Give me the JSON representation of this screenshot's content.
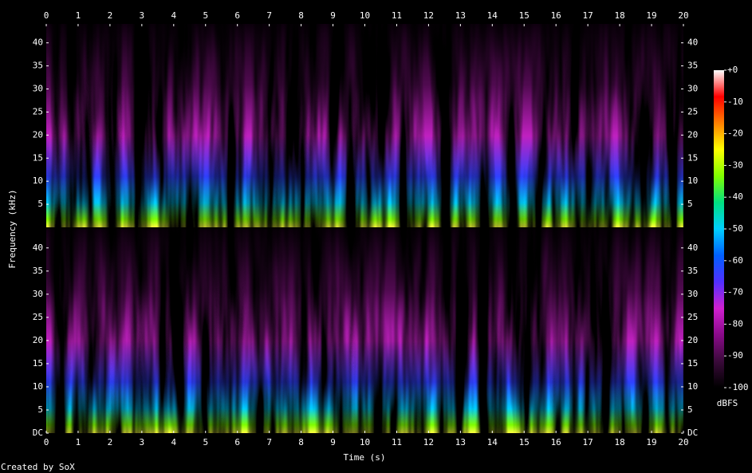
{
  "chart_data": {
    "type": "spectrogram",
    "xlabel": "Time (s)",
    "ylabel": "Frequency (kHz)",
    "footer": "Created by SoX",
    "xlim": [
      0,
      20
    ],
    "xticks": [
      0,
      1,
      2,
      3,
      4,
      5,
      6,
      7,
      8,
      9,
      10,
      11,
      12,
      13,
      14,
      15,
      16,
      17,
      18,
      19,
      20
    ],
    "channels": [
      {
        "ylim": [
          0,
          44.1
        ],
        "yticks": [
          5,
          10,
          15,
          20,
          25,
          30,
          35,
          40
        ]
      },
      {
        "ylim": [
          0,
          44.1
        ],
        "yticks": [
          {
            "value": 0,
            "label": "DC"
          },
          5,
          10,
          15,
          20,
          25,
          30,
          35,
          40
        ]
      }
    ],
    "colorbar": {
      "label": "dBFS",
      "lim": [
        -100,
        0
      ],
      "ticks": [
        {
          "value": 0,
          "label": "+0"
        },
        -10,
        -20,
        -30,
        -40,
        -50,
        -60,
        -70,
        -80,
        -90,
        -100
      ],
      "colormap": [
        "#000000",
        "#3a0a3a",
        "#8a0a8a",
        "#d020d0",
        "#5030ff",
        "#0060ff",
        "#00d0ff",
        "#00e080",
        "#80ff00",
        "#ffff00",
        "#ff8000",
        "#ff0000",
        "#ffffff"
      ]
    }
  }
}
